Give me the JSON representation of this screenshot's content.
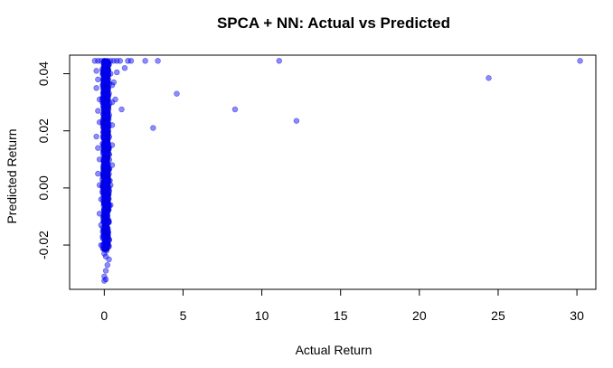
{
  "chart_data": {
    "type": "scatter",
    "title": "SPCA + NN: Actual vs Predicted",
    "xlabel": "Actual Return",
    "ylabel": "Predicted Return",
    "xlim": [
      -2.2,
      31.2
    ],
    "ylim": [
      -0.0355,
      0.0465
    ],
    "x_ticks": [
      0,
      5,
      10,
      15,
      20,
      25,
      30
    ],
    "y_ticks": [
      -0.02,
      0.0,
      0.02,
      0.04
    ],
    "x_tick_labels": [
      "0",
      "5",
      "10",
      "15",
      "20",
      "25",
      "30"
    ],
    "y_tick_labels": [
      "-0.02",
      "0.00",
      "0.02",
      "0.04"
    ],
    "point_color": "#0000FF",
    "grid": false,
    "legend": "none",
    "series": [
      {
        "points": [
          [
            -0.6,
            0.0445
          ],
          [
            -0.4,
            0.0445
          ],
          [
            -0.2,
            0.0445
          ],
          [
            0.0,
            0.0445
          ],
          [
            0.2,
            0.0445
          ],
          [
            0.4,
            0.0445
          ],
          [
            0.6,
            0.0445
          ],
          [
            0.8,
            0.0445
          ],
          [
            1.0,
            0.0445
          ],
          [
            1.5,
            0.0445
          ],
          [
            1.7,
            0.0445
          ],
          [
            2.6,
            0.0445
          ],
          [
            3.4,
            0.0445
          ],
          [
            11.1,
            0.0445
          ],
          [
            30.2,
            0.0445
          ],
          [
            1.3,
            0.042
          ],
          [
            0.8,
            0.0405
          ],
          [
            0.6,
            0.037
          ],
          [
            24.4,
            0.0385
          ],
          [
            4.6,
            0.033
          ],
          [
            0.7,
            0.031
          ],
          [
            1.1,
            0.0275
          ],
          [
            8.3,
            0.0275
          ],
          [
            12.2,
            0.0235
          ],
          [
            3.1,
            0.021
          ],
          [
            -0.5,
            0.041
          ],
          [
            -0.4,
            0.038
          ],
          [
            -0.5,
            0.035
          ],
          [
            -0.3,
            0.031
          ],
          [
            -0.4,
            0.027
          ],
          [
            -0.3,
            0.023
          ],
          [
            -0.5,
            0.018
          ],
          [
            -0.4,
            0.014
          ],
          [
            -0.3,
            0.01
          ],
          [
            -0.4,
            0.005
          ],
          [
            -0.3,
            0.001
          ],
          [
            -0.2,
            -0.004
          ],
          [
            -0.3,
            -0.009
          ],
          [
            -0.2,
            -0.013
          ],
          [
            -0.1,
            -0.017
          ],
          [
            -0.2,
            -0.02
          ],
          [
            0.0,
            -0.023
          ],
          [
            0.1,
            -0.024
          ],
          [
            0.3,
            -0.025
          ],
          [
            0.2,
            -0.027
          ],
          [
            0.1,
            -0.029
          ],
          [
            0.0,
            -0.031
          ],
          [
            0.1,
            -0.032
          ],
          [
            0.0,
            -0.0325
          ],
          [
            0.5,
            0.036
          ],
          [
            0.5,
            0.03
          ],
          [
            0.5,
            0.022
          ],
          [
            0.5,
            0.015
          ],
          [
            0.5,
            0.008
          ],
          [
            0.4,
            0.001
          ],
          [
            0.4,
            -0.006
          ],
          [
            0.3,
            -0.012
          ],
          [
            0.3,
            -0.018
          ],
          [
            0.4,
            0.04
          ]
        ],
        "cluster": {
          "x_center": 0.1,
          "x_spread": 0.3,
          "y_range": [
            -0.022,
            0.0445
          ],
          "approx_count": 1500
        }
      }
    ]
  }
}
